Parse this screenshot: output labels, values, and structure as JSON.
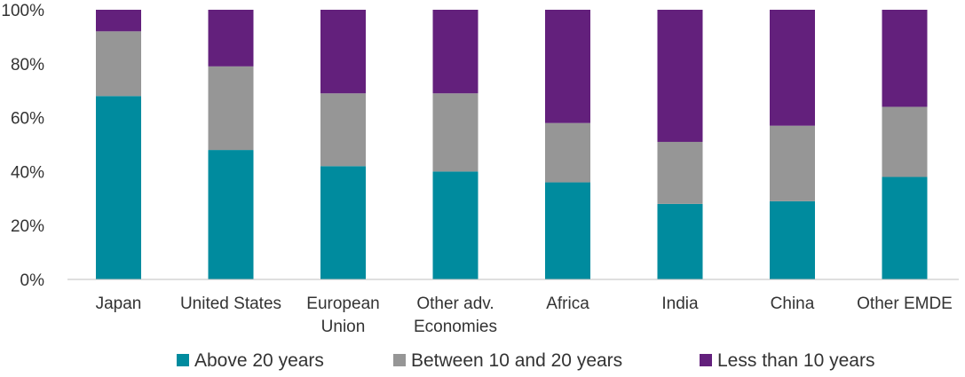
{
  "chart_data": {
    "type": "bar",
    "stacked": true,
    "title": "",
    "xlabel": "",
    "ylabel": "",
    "ylim": [
      0,
      100
    ],
    "y_ticks": [
      "0%",
      "20%",
      "40%",
      "60%",
      "80%",
      "100%"
    ],
    "y_tick_values": [
      0,
      20,
      40,
      60,
      80,
      100
    ],
    "categories": [
      [
        "Japan"
      ],
      [
        "United States"
      ],
      [
        "European",
        "Union"
      ],
      [
        "Other adv.",
        "Economies"
      ],
      [
        "Africa"
      ],
      [
        "India"
      ],
      [
        "China"
      ],
      [
        "Other EMDE"
      ]
    ],
    "series": [
      {
        "name": "Above 20 years",
        "color": "#008B9E",
        "values": [
          68,
          48,
          42,
          40,
          36,
          28,
          29,
          38
        ]
      },
      {
        "name": "Between 10 and 20 years",
        "color": "#969696",
        "values": [
          24,
          31,
          27,
          29,
          22,
          23,
          28,
          26
        ]
      },
      {
        "name": "Less than 10 years",
        "color": "#63207C",
        "values": [
          8,
          21,
          31,
          31,
          42,
          49,
          43,
          36
        ]
      }
    ],
    "legend_position": "bottom"
  }
}
